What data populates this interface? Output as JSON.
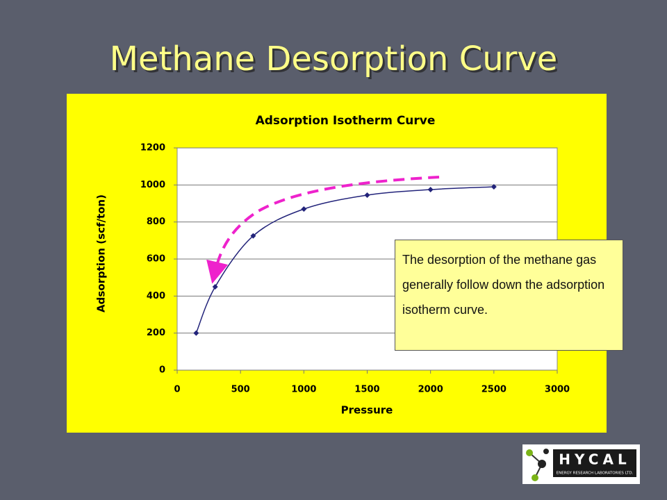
{
  "slide": {
    "title": "Methane Desorption Curve",
    "callout": "The desorption of the methane gas generally follow down the adsorption isotherm curve.",
    "logo": {
      "name": "HYCAL",
      "subtitle": "ENERGY RESEARCH LABORATORIES LTD."
    }
  },
  "chart_data": {
    "type": "line",
    "title": "Adsorption Isotherm Curve",
    "x_label": "Pressure",
    "y_label": "Adsorption (scf/ton)",
    "x": [
      150,
      300,
      600,
      1000,
      1500,
      2000,
      2500
    ],
    "values": [
      200,
      450,
      725,
      870,
      945,
      975,
      990
    ],
    "color": "#22237a",
    "xlim": [
      0,
      3000
    ],
    "xticks": [
      0,
      500,
      1000,
      1500,
      2000,
      2500,
      3000
    ],
    "ylim": [
      0,
      1200
    ],
    "yticks": [
      0,
      200,
      400,
      600,
      800,
      1000,
      1200
    ],
    "grid": true
  }
}
